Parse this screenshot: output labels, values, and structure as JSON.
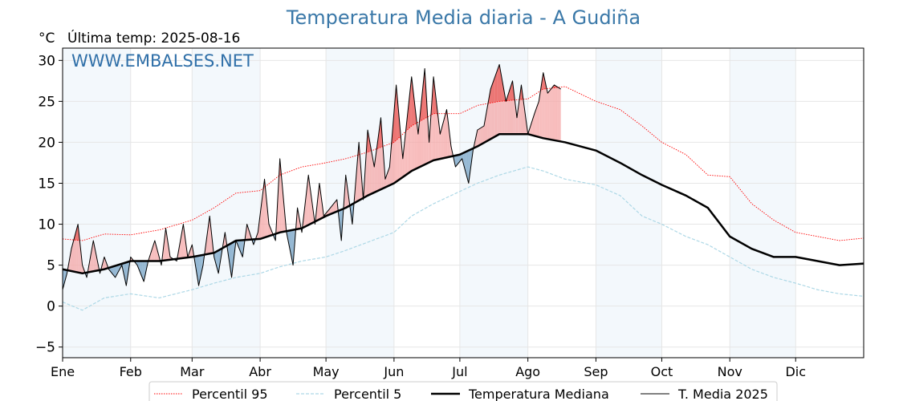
{
  "chart_data": {
    "type": "line",
    "title": "Temperatura Media diaria - A Gudiña",
    "unit_label": "°C",
    "last_temp_label": "Última temp: 2025-08-16",
    "watermark": "WWW.EMBALSES.NET",
    "ylim": [
      -6.3,
      31.5
    ],
    "xlim": [
      1,
      366
    ],
    "yticks": [
      -5,
      0,
      5,
      10,
      15,
      20,
      25,
      30
    ],
    "xticks": [
      {
        "label": "Ene",
        "day": 1
      },
      {
        "label": "Feb",
        "day": 32
      },
      {
        "label": "Mar",
        "day": 60
      },
      {
        "label": "Abr",
        "day": 91
      },
      {
        "label": "May",
        "day": 121
      },
      {
        "label": "Jun",
        "day": 152
      },
      {
        "label": "Jul",
        "day": 182
      },
      {
        "label": "Ago",
        "day": 213
      },
      {
        "label": "Sep",
        "day": 244
      },
      {
        "label": "Oct",
        "day": 274
      },
      {
        "label": "Nov",
        "day": 305
      },
      {
        "label": "Dic",
        "day": 335
      }
    ],
    "shaded_months": [
      [
        1,
        32
      ],
      [
        60,
        91
      ],
      [
        121,
        152
      ],
      [
        182,
        213
      ],
      [
        244,
        274
      ],
      [
        305,
        335
      ]
    ],
    "grid": true,
    "legend_position": "bottom",
    "series": [
      {
        "name": "Percentil 95",
        "color": "#ff0000",
        "style": "dotted",
        "x": [
          1,
          10,
          20,
          32,
          45,
          60,
          70,
          80,
          91,
          100,
          110,
          121,
          130,
          140,
          152,
          160,
          170,
          182,
          190,
          200,
          213,
          220,
          230,
          244,
          255,
          265,
          274,
          285,
          295,
          305,
          315,
          325,
          335,
          345,
          355,
          366
        ],
        "y": [
          8.2,
          8.0,
          8.8,
          8.7,
          9.3,
          10.5,
          12.0,
          13.8,
          14.1,
          16.0,
          17.0,
          17.5,
          18.0,
          18.8,
          20.0,
          22.0,
          23.5,
          23.5,
          24.5,
          25.0,
          25.3,
          26.5,
          26.8,
          25.0,
          24.0,
          22.0,
          20.0,
          18.5,
          16.0,
          15.8,
          12.5,
          10.5,
          9.0,
          8.5,
          8.0,
          8.3
        ]
      },
      {
        "name": "Percentil 5",
        "color": "#add8e6",
        "style": "dashed",
        "x": [
          1,
          10,
          20,
          32,
          45,
          60,
          70,
          80,
          91,
          100,
          110,
          121,
          130,
          140,
          152,
          160,
          170,
          182,
          190,
          200,
          213,
          220,
          230,
          244,
          255,
          265,
          274,
          285,
          295,
          305,
          315,
          325,
          335,
          345,
          355,
          366
        ],
        "y": [
          0.5,
          -0.5,
          1.0,
          1.5,
          1.0,
          2.0,
          2.8,
          3.5,
          4.0,
          4.8,
          5.5,
          6.0,
          6.8,
          7.8,
          9.0,
          11.0,
          12.5,
          14.0,
          15.0,
          16.0,
          17.0,
          16.5,
          15.5,
          14.8,
          13.5,
          11.0,
          10.0,
          8.5,
          7.5,
          6.0,
          4.5,
          3.5,
          2.8,
          2.0,
          1.5,
          1.2
        ]
      },
      {
        "name": "Temperatura Mediana",
        "color": "#000000",
        "style": "thick",
        "x": [
          1,
          10,
          20,
          32,
          45,
          60,
          70,
          80,
          91,
          100,
          110,
          121,
          130,
          140,
          152,
          160,
          170,
          182,
          190,
          200,
          213,
          220,
          230,
          244,
          255,
          265,
          274,
          285,
          295,
          305,
          315,
          325,
          335,
          345,
          355,
          366
        ],
        "y": [
          4.5,
          4.0,
          4.5,
          5.5,
          5.5,
          6.0,
          6.5,
          8.0,
          8.2,
          9.0,
          9.5,
          11.0,
          12.0,
          13.5,
          15.0,
          16.5,
          17.8,
          18.5,
          19.5,
          21.0,
          21.0,
          20.5,
          20.0,
          19.0,
          17.5,
          16.0,
          14.8,
          13.5,
          12.0,
          8.5,
          7.0,
          6.0,
          6.0,
          5.5,
          5.0,
          5.2
        ]
      },
      {
        "name": "T. Media 2025",
        "color": "#000000",
        "style": "thin",
        "x": [
          1,
          3,
          5,
          8,
          10,
          12,
          15,
          18,
          20,
          22,
          25,
          28,
          30,
          32,
          35,
          38,
          40,
          43,
          46,
          48,
          50,
          53,
          56,
          58,
          60,
          63,
          65,
          68,
          70,
          72,
          75,
          78,
          80,
          83,
          85,
          88,
          90,
          93,
          95,
          98,
          100,
          103,
          106,
          108,
          110,
          113,
          116,
          118,
          120,
          123,
          126,
          128,
          130,
          133,
          136,
          138,
          140,
          143,
          146,
          148,
          150,
          153,
          156,
          158,
          160,
          163,
          166,
          168,
          170,
          173,
          176,
          178,
          180,
          183,
          186,
          188,
          190,
          193,
          196,
          198,
          200,
          203,
          206,
          208,
          210,
          213,
          216,
          218,
          220,
          222,
          225,
          228
        ],
        "y": [
          2.0,
          4.0,
          7.0,
          10.0,
          5.0,
          3.5,
          8.0,
          4.0,
          6.0,
          4.5,
          3.5,
          5.0,
          2.5,
          6.0,
          5.0,
          3.0,
          5.5,
          8.0,
          5.0,
          9.5,
          6.0,
          5.5,
          10.0,
          6.0,
          7.5,
          2.5,
          5.0,
          11.0,
          6.0,
          4.0,
          9.0,
          3.5,
          8.0,
          6.0,
          10.0,
          7.5,
          9.0,
          15.5,
          10.0,
          8.0,
          18.0,
          9.0,
          5.0,
          12.0,
          9.0,
          16.0,
          10.0,
          15.0,
          11.0,
          12.0,
          13.0,
          8.0,
          16.0,
          10.0,
          20.0,
          13.0,
          21.5,
          17.0,
          23.0,
          15.5,
          17.0,
          27.0,
          18.0,
          23.0,
          28.0,
          21.0,
          29.0,
          20.0,
          28.0,
          21.0,
          24.0,
          19.5,
          17.0,
          18.0,
          15.0,
          19.0,
          21.5,
          22.0,
          26.5,
          28.0,
          29.5,
          25.0,
          27.5,
          23.0,
          27.0,
          21.0,
          23.5,
          25.0,
          28.5,
          26.0,
          27.0,
          26.5
        ]
      }
    ]
  }
}
